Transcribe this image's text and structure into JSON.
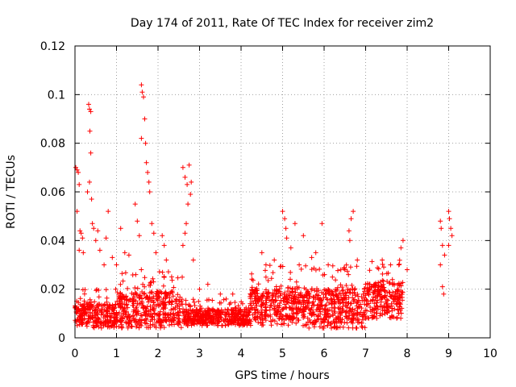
{
  "chart_data": {
    "type": "scatter",
    "title": "Day 174 of 2011, Rate Of TEC Index for receiver zim2",
    "xlabel": "GPS time / hours",
    "ylabel": "ROTI / TECUs",
    "xlim": [
      0,
      10
    ],
    "ylim": [
      0,
      0.12
    ],
    "xticks": [
      "0",
      "1",
      "2",
      "3",
      "4",
      "5",
      "6",
      "7",
      "8",
      "9",
      "10"
    ],
    "yticks": [
      "0",
      "0.02",
      "0.04",
      "0.06",
      "0.08",
      "0.1",
      "0.12"
    ],
    "grid": true,
    "marker": "+",
    "color": "#ff0000",
    "series": [
      {
        "name": "ROTI",
        "points": [
          [
            0.02,
            0.07
          ],
          [
            0.05,
            0.069
          ],
          [
            0.08,
            0.068
          ],
          [
            0.1,
            0.063
          ],
          [
            0.12,
            0.044
          ],
          [
            0.15,
            0.043
          ],
          [
            0.18,
            0.041
          ],
          [
            0.1,
            0.036
          ],
          [
            0.2,
            0.035
          ],
          [
            0.05,
            0.052
          ],
          [
            0.33,
            0.096
          ],
          [
            0.35,
            0.094
          ],
          [
            0.38,
            0.093
          ],
          [
            0.36,
            0.085
          ],
          [
            0.38,
            0.076
          ],
          [
            0.35,
            0.064
          ],
          [
            0.4,
            0.057
          ],
          [
            0.3,
            0.06
          ],
          [
            0.42,
            0.047
          ],
          [
            0.45,
            0.045
          ],
          [
            0.5,
            0.04
          ],
          [
            0.55,
            0.044
          ],
          [
            0.6,
            0.036
          ],
          [
            0.7,
            0.03
          ],
          [
            0.8,
            0.052
          ],
          [
            0.75,
            0.041
          ],
          [
            0.9,
            0.033
          ],
          [
            1.0,
            0.03
          ],
          [
            1.1,
            0.045
          ],
          [
            1.2,
            0.035
          ],
          [
            1.3,
            0.034
          ],
          [
            1.45,
            0.055
          ],
          [
            1.5,
            0.048
          ],
          [
            1.55,
            0.042
          ],
          [
            1.6,
            0.104
          ],
          [
            1.62,
            0.101
          ],
          [
            1.65,
            0.099
          ],
          [
            1.68,
            0.09
          ],
          [
            1.6,
            0.082
          ],
          [
            1.7,
            0.08
          ],
          [
            1.72,
            0.072
          ],
          [
            1.75,
            0.068
          ],
          [
            1.78,
            0.064
          ],
          [
            1.8,
            0.06
          ],
          [
            1.85,
            0.047
          ],
          [
            1.9,
            0.043
          ],
          [
            1.95,
            0.035
          ],
          [
            2.1,
            0.042
          ],
          [
            2.15,
            0.038
          ],
          [
            2.2,
            0.032
          ],
          [
            2.6,
            0.07
          ],
          [
            2.65,
            0.066
          ],
          [
            2.7,
            0.063
          ],
          [
            2.75,
            0.071
          ],
          [
            2.8,
            0.064
          ],
          [
            2.78,
            0.059
          ],
          [
            2.72,
            0.055
          ],
          [
            2.68,
            0.047
          ],
          [
            2.65,
            0.043
          ],
          [
            2.6,
            0.038
          ],
          [
            2.85,
            0.032
          ],
          [
            3.0,
            0.02
          ],
          [
            3.2,
            0.022
          ],
          [
            3.5,
            0.018
          ],
          [
            3.8,
            0.018
          ],
          [
            4.5,
            0.035
          ],
          [
            4.6,
            0.03
          ],
          [
            4.8,
            0.032
          ],
          [
            5.0,
            0.052
          ],
          [
            5.05,
            0.049
          ],
          [
            5.08,
            0.045
          ],
          [
            5.1,
            0.041
          ],
          [
            5.2,
            0.037
          ],
          [
            5.3,
            0.047
          ],
          [
            5.5,
            0.042
          ],
          [
            5.4,
            0.03
          ],
          [
            5.7,
            0.033
          ],
          [
            5.8,
            0.035
          ],
          [
            5.95,
            0.047
          ],
          [
            6.1,
            0.03
          ],
          [
            6.2,
            0.025
          ],
          [
            6.5,
            0.028
          ],
          [
            6.7,
            0.052
          ],
          [
            6.65,
            0.049
          ],
          [
            6.6,
            0.044
          ],
          [
            6.62,
            0.04
          ],
          [
            6.8,
            0.032
          ],
          [
            7.0,
            0.022
          ],
          [
            7.4,
            0.032
          ],
          [
            7.6,
            0.03
          ],
          [
            7.8,
            0.03
          ],
          [
            7.9,
            0.04
          ],
          [
            7.85,
            0.037
          ],
          [
            8.0,
            0.028
          ],
          [
            8.8,
            0.048
          ],
          [
            8.82,
            0.045
          ],
          [
            8.85,
            0.038
          ],
          [
            8.9,
            0.034
          ],
          [
            8.8,
            0.03
          ],
          [
            8.85,
            0.021
          ],
          [
            8.88,
            0.018
          ],
          [
            9.0,
            0.052
          ],
          [
            9.02,
            0.049
          ],
          [
            9.05,
            0.045
          ],
          [
            9.08,
            0.042
          ],
          [
            9.0,
            0.038
          ]
        ],
        "background_band": {
          "description": "dense cluster of ROTI samples across the day",
          "segments": [
            {
              "x": [
                0.0,
                1.0
              ],
              "ymin": 0.004,
              "ymax": 0.02
            },
            {
              "x": [
                1.0,
                2.6
              ],
              "ymin": 0.004,
              "ymax": 0.028
            },
            {
              "x": [
                2.6,
                4.2
              ],
              "ymin": 0.005,
              "ymax": 0.016
            },
            {
              "x": [
                4.2,
                5.6
              ],
              "ymin": 0.005,
              "ymax": 0.03
            },
            {
              "x": [
                5.6,
                7.0
              ],
              "ymin": 0.004,
              "ymax": 0.03
            },
            {
              "x": [
                7.0,
                7.9
              ],
              "ymin": 0.008,
              "ymax": 0.032
            }
          ]
        }
      }
    ]
  }
}
